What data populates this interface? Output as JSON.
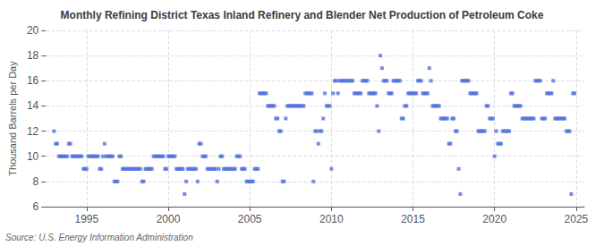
{
  "chart_data": {
    "type": "scatter",
    "title": "Monthly Refining District Texas Inland Refinery and Blender Net Production of Petroleum Coke",
    "ylabel": "Thousand Barrels per Day",
    "annotation": "Source: U.S. Energy Information Administration",
    "marker": "square",
    "grid": true,
    "xlim": [
      1992.5,
      2025.5
    ],
    "xticks": [
      1995,
      2000,
      2005,
      2010,
      2015,
      2020,
      2025
    ],
    "ylim": [
      6,
      20
    ],
    "yticks": [
      6,
      8,
      10,
      12,
      14,
      16,
      18,
      20
    ],
    "x": [
      1993.0,
      1993.1,
      1993.2,
      1993.3,
      1993.4,
      1993.5,
      1993.6,
      1993.7,
      1993.8,
      1993.9,
      1994.0,
      1994.1,
      1994.2,
      1994.3,
      1994.4,
      1994.5,
      1994.6,
      1994.7,
      1994.8,
      1994.9,
      1995.0,
      1995.1,
      1995.2,
      1995.3,
      1995.4,
      1995.5,
      1995.6,
      1995.7,
      1995.8,
      1995.9,
      1996.0,
      1996.1,
      1996.2,
      1996.3,
      1996.4,
      1996.5,
      1996.6,
      1996.7,
      1996.8,
      1996.9,
      1997.0,
      1997.1,
      1997.2,
      1997.3,
      1997.4,
      1997.5,
      1997.6,
      1997.7,
      1997.8,
      1997.9,
      1998.0,
      1998.1,
      1998.2,
      1998.3,
      1998.4,
      1998.5,
      1998.6,
      1998.7,
      1998.8,
      1998.9,
      1999.0,
      1999.1,
      1999.2,
      1999.3,
      1999.4,
      1999.5,
      1999.6,
      1999.7,
      1999.8,
      1999.9,
      2000.0,
      2000.1,
      2000.2,
      2000.3,
      2000.4,
      2000.5,
      2000.6,
      2000.7,
      2000.8,
      2000.9,
      2001.0,
      2001.1,
      2001.2,
      2001.3,
      2001.4,
      2001.5,
      2001.6,
      2001.7,
      2001.8,
      2001.9,
      2002.0,
      2002.1,
      2002.2,
      2002.3,
      2002.4,
      2002.5,
      2002.6,
      2002.7,
      2002.8,
      2002.9,
      2003.0,
      2003.1,
      2003.2,
      2003.3,
      2003.4,
      2003.5,
      2003.6,
      2003.7,
      2003.8,
      2003.9,
      2004.0,
      2004.1,
      2004.2,
      2004.3,
      2004.4,
      2004.5,
      2004.6,
      2004.7,
      2004.8,
      2004.9,
      2005.0,
      2005.1,
      2005.2,
      2005.3,
      2005.4,
      2005.5,
      2005.6,
      2005.7,
      2005.8,
      2005.9,
      2006.0,
      2006.1,
      2006.2,
      2006.3,
      2006.4,
      2006.5,
      2006.6,
      2006.7,
      2006.8,
      2006.9,
      2007.0,
      2007.1,
      2007.2,
      2007.3,
      2007.4,
      2007.5,
      2007.6,
      2007.7,
      2007.8,
      2007.9,
      2008.0,
      2008.1,
      2008.2,
      2008.3,
      2008.4,
      2008.5,
      2008.6,
      2008.7,
      2008.8,
      2008.9,
      2009.0,
      2009.1,
      2009.2,
      2009.3,
      2009.4,
      2009.5,
      2009.6,
      2009.7,
      2009.8,
      2009.9,
      2010.0,
      2010.1,
      2010.2,
      2010.3,
      2010.4,
      2010.5,
      2010.6,
      2010.7,
      2010.8,
      2010.9,
      2011.0,
      2011.1,
      2011.2,
      2011.3,
      2011.4,
      2011.5,
      2011.6,
      2011.7,
      2011.8,
      2011.9,
      2012.0,
      2012.1,
      2012.2,
      2012.3,
      2012.4,
      2012.5,
      2012.6,
      2012.7,
      2012.8,
      2012.9,
      2013.0,
      2013.1,
      2013.2,
      2013.3,
      2013.4,
      2013.5,
      2013.6,
      2013.7,
      2013.8,
      2013.9,
      2014.0,
      2014.1,
      2014.2,
      2014.3,
      2014.4,
      2014.5,
      2014.6,
      2014.7,
      2014.8,
      2014.9,
      2015.0,
      2015.1,
      2015.2,
      2015.3,
      2015.4,
      2015.5,
      2015.6,
      2015.7,
      2015.8,
      2015.9,
      2016.0,
      2016.1,
      2016.2,
      2016.3,
      2016.4,
      2016.5,
      2016.6,
      2016.7,
      2016.8,
      2016.9,
      2017.0,
      2017.1,
      2017.2,
      2017.3,
      2017.4,
      2017.5,
      2017.6,
      2017.7,
      2017.8,
      2017.9,
      2018.0,
      2018.1,
      2018.2,
      2018.3,
      2018.4,
      2018.5,
      2018.6,
      2018.7,
      2018.8,
      2018.9,
      2019.0,
      2019.1,
      2019.2,
      2019.3,
      2019.4,
      2019.5,
      2019.6,
      2019.7,
      2019.8,
      2019.9,
      2020.0,
      2020.1,
      2020.2,
      2020.3,
      2020.4,
      2020.5,
      2020.6,
      2020.7,
      2020.8,
      2020.9,
      2021.0,
      2021.1,
      2021.2,
      2021.3,
      2021.4,
      2021.5,
      2021.6,
      2021.7,
      2021.8,
      2021.9,
      2022.0,
      2022.1,
      2022.2,
      2022.3,
      2022.4,
      2022.5,
      2022.6,
      2022.7,
      2022.8,
      2022.9,
      2023.0,
      2023.1,
      2023.2,
      2023.3,
      2023.4,
      2023.5,
      2023.6,
      2023.7,
      2023.8,
      2023.9,
      2024.0,
      2024.1,
      2024.2,
      2024.3,
      2024.4,
      2024.5,
      2024.6,
      2024.7,
      2024.8,
      2024.9
    ],
    "values": [
      12.0,
      11.0,
      11.0,
      10.0,
      10.0,
      10.0,
      10.0,
      10.0,
      10.0,
      11.0,
      11.0,
      10.0,
      10.0,
      10.0,
      10.0,
      10.0,
      10.0,
      10.0,
      9.0,
      9.0,
      9.0,
      10.0,
      10.0,
      10.0,
      10.0,
      10.0,
      10.0,
      10.0,
      9.0,
      9.0,
      10.0,
      11.0,
      10.0,
      10.0,
      10.0,
      10.0,
      10.0,
      8.0,
      8.0,
      8.0,
      10.0,
      10.0,
      9.0,
      9.0,
      9.0,
      9.0,
      9.0,
      9.0,
      9.0,
      9.0,
      9.0,
      9.0,
      9.0,
      9.0,
      8.0,
      8.0,
      9.0,
      9.0,
      9.0,
      9.0,
      9.0,
      10.0,
      10.0,
      10.0,
      10.0,
      10.0,
      10.0,
      10.0,
      9.0,
      9.0,
      10.0,
      10.0,
      10.0,
      10.0,
      10.0,
      9.0,
      9.0,
      9.0,
      9.0,
      9.0,
      7.0,
      8.0,
      9.0,
      9.0,
      9.0,
      9.0,
      9.0,
      9.0,
      8.0,
      11.0,
      11.0,
      10.0,
      10.0,
      10.0,
      9.0,
      9.0,
      9.0,
      9.0,
      9.0,
      9.0,
      8.0,
      9.0,
      10.0,
      10.0,
      9.0,
      9.0,
      9.0,
      9.0,
      9.0,
      9.0,
      9.0,
      9.0,
      10.0,
      10.0,
      10.0,
      9.0,
      9.0,
      9.0,
      8.0,
      8.0,
      8.0,
      8.0,
      8.0,
      9.0,
      9.0,
      9.0,
      15.0,
      15.0,
      15.0,
      15.0,
      15.0,
      14.0,
      14.0,
      14.0,
      14.0,
      14.0,
      13.0,
      13.0,
      12.0,
      12.0,
      8.0,
      8.0,
      13.0,
      14.0,
      14.0,
      14.0,
      14.0,
      14.0,
      14.0,
      14.0,
      14.0,
      14.0,
      14.0,
      14.0,
      15.0,
      15.0,
      15.0,
      15.0,
      15.0,
      8.0,
      12.0,
      12.0,
      11.0,
      12.0,
      12.0,
      13.0,
      15.0,
      14.0,
      14.0,
      14.0,
      9.0,
      15.0,
      16.0,
      16.0,
      15.0,
      16.0,
      16.0,
      16.0,
      16.0,
      16.0,
      16.0,
      16.0,
      16.0,
      16.0,
      15.0,
      15.0,
      15.0,
      15.0,
      15.0,
      16.0,
      16.0,
      16.0,
      16.0,
      15.0,
      15.0,
      15.0,
      15.0,
      15.0,
      14.0,
      12.0,
      18.0,
      17.0,
      16.0,
      16.0,
      16.0,
      15.0,
      15.0,
      15.0,
      16.0,
      16.0,
      16.0,
      16.0,
      16.0,
      13.0,
      13.0,
      14.0,
      14.0,
      15.0,
      15.0,
      15.0,
      15.0,
      15.0,
      15.0,
      16.0,
      16.0,
      16.0,
      15.0,
      15.0,
      15.0,
      15.0,
      17.0,
      16.0,
      14.0,
      14.0,
      14.0,
      14.0,
      14.0,
      13.0,
      13.0,
      13.0,
      13.0,
      13.0,
      11.0,
      11.0,
      13.0,
      13.0,
      12.0,
      12.0,
      9.0,
      7.0,
      16.0,
      16.0,
      16.0,
      16.0,
      16.0,
      15.0,
      15.0,
      15.0,
      15.0,
      15.0,
      12.0,
      12.0,
      12.0,
      12.0,
      12.0,
      14.0,
      14.0,
      13.0,
      13.0,
      13.0,
      10.0,
      12.0,
      11.0,
      11.0,
      11.0,
      12.0,
      12.0,
      12.0,
      12.0,
      12.0,
      15.0,
      15.0,
      14.0,
      14.0,
      14.0,
      14.0,
      14.0,
      13.0,
      13.0,
      13.0,
      13.0,
      13.0,
      13.0,
      13.0,
      13.0,
      16.0,
      16.0,
      16.0,
      16.0,
      13.0,
      13.0,
      13.0,
      15.0,
      15.0,
      15.0,
      15.0,
      16.0,
      13.0,
      13.0,
      13.0,
      13.0,
      13.0,
      13.0,
      13.0,
      12.0,
      12.0,
      12.0,
      7.0,
      15.0,
      15.0
    ]
  }
}
